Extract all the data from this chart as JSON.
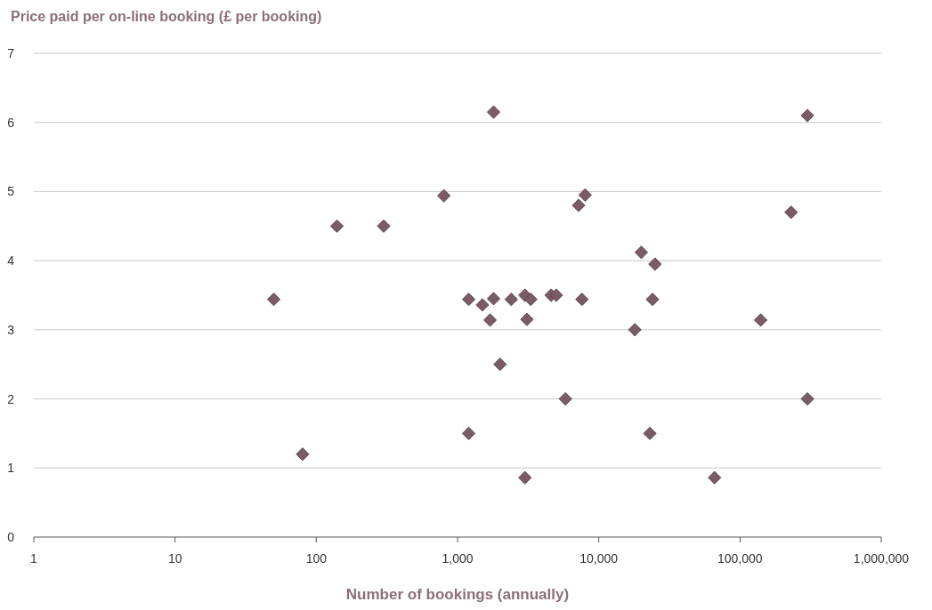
{
  "chart_data": {
    "type": "scatter",
    "xlabel": "Number of bookings (annually)",
    "ylabel": "Price paid per on-line booking (£ per booking)",
    "log": "x",
    "grid": "y",
    "marker": "diamond",
    "xlim": [
      1,
      1000000
    ],
    "xticks": [
      1,
      10,
      100,
      {
        "value": 1000,
        "label": "1,000"
      },
      {
        "value": 10000,
        "label": "10,000"
      },
      {
        "value": 100000,
        "label": "100,000"
      },
      {
        "value": 1000000,
        "label": "1,000,000"
      }
    ],
    "ylim": [
      0,
      7
    ],
    "yticks": [
      0,
      1,
      2,
      3,
      4,
      5,
      6,
      7
    ],
    "series": [
      {
        "color": "#7b5c66",
        "x": [
          50,
          80,
          140,
          300,
          800,
          1200,
          1200,
          1500,
          1700,
          1800,
          1800,
          2000,
          2400,
          3000,
          3000,
          3100,
          3300,
          4600,
          5000,
          5800,
          7200,
          7600,
          8000,
          18000,
          20000,
          23000,
          24000,
          25000,
          66000,
          140000,
          230000,
          300000,
          300000
        ],
        "values": [
          3.44,
          1.2,
          4.5,
          4.5,
          4.94,
          3.44,
          1.5,
          3.36,
          3.14,
          3.45,
          6.15,
          2.5,
          3.44,
          3.5,
          0.86,
          3.15,
          3.44,
          3.5,
          3.5,
          2.0,
          4.8,
          3.44,
          4.95,
          3.0,
          4.12,
          1.5,
          3.44,
          3.95,
          0.86,
          3.14,
          4.7,
          6.1,
          2.0
        ]
      }
    ]
  }
}
